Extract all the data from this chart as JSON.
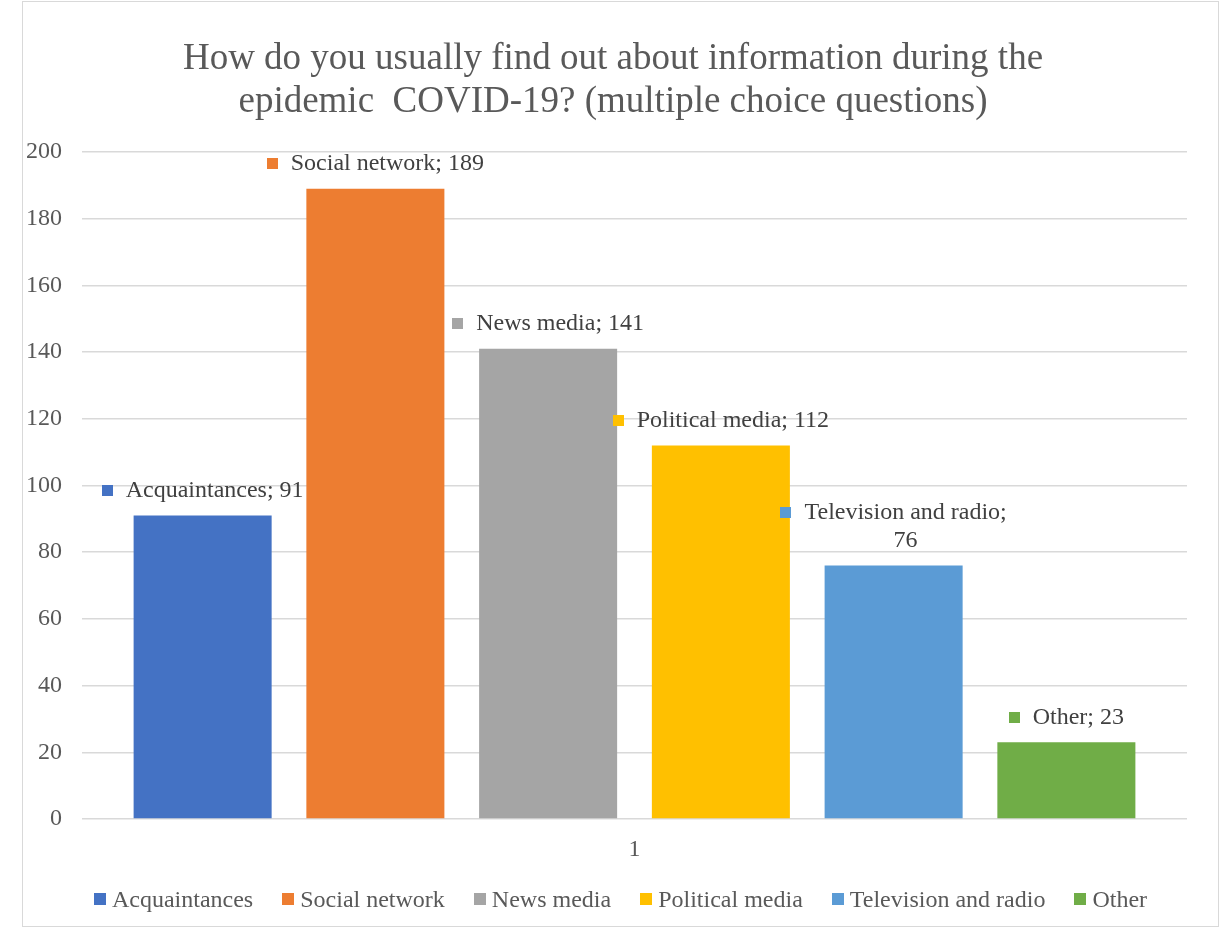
{
  "chart_data": {
    "type": "bar",
    "title": "How do you usually find out about information during the epidemic  COVID-19? (multiple choice questions)",
    "categories": [
      "1"
    ],
    "series": [
      {
        "name": "Acquaintances",
        "color": "#4472c4",
        "values": [
          91
        ],
        "value_labels": [
          "Acquaintances; 91"
        ]
      },
      {
        "name": "Social network",
        "color": "#ed7d31",
        "values": [
          189
        ],
        "value_labels": [
          "Social network; 189"
        ]
      },
      {
        "name": "News media",
        "color": "#a5a5a5",
        "values": [
          141
        ],
        "value_labels": [
          "News media; 141"
        ]
      },
      {
        "name": "Political media",
        "color": "#ffc000",
        "values": [
          112
        ],
        "value_labels": [
          "Political media; 112"
        ]
      },
      {
        "name": "Television and radio",
        "color": "#5b9bd5",
        "values": [
          76
        ],
        "value_labels": [
          "Television and radio; 76"
        ]
      },
      {
        "name": "Other",
        "color": "#70ad47",
        "values": [
          23
        ],
        "value_labels": [
          "Other; 23"
        ]
      }
    ],
    "ylim": [
      0,
      200
    ],
    "yticks": [
      0,
      20,
      40,
      60,
      80,
      100,
      120,
      140,
      160,
      180,
      200
    ],
    "grid": "y",
    "legend": "bottom"
  }
}
